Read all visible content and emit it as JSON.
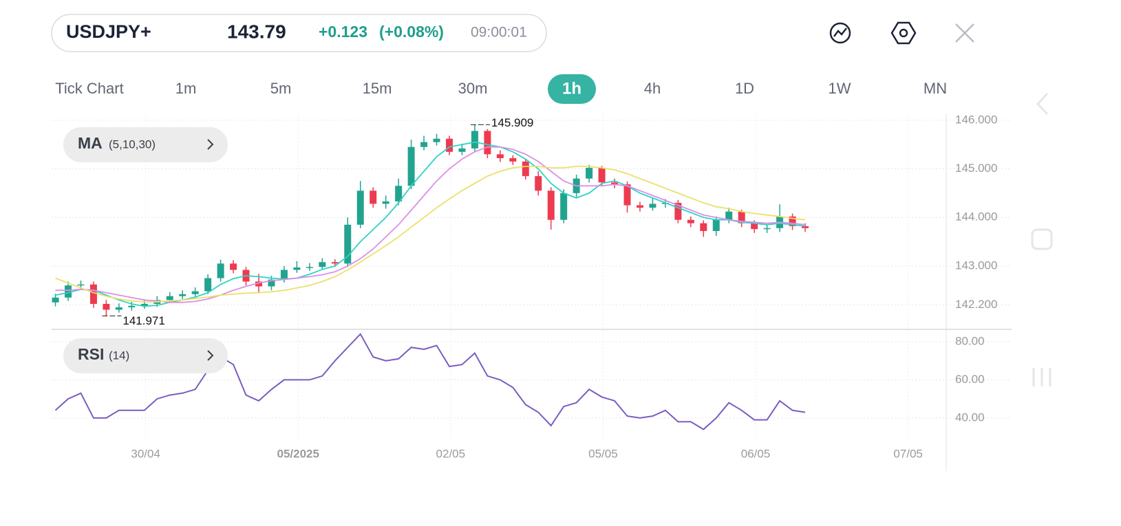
{
  "header": {
    "symbol": "USDJPY+",
    "price": "143.79",
    "change": "+0.123",
    "change_pct": "(+0.08%)",
    "time": "09:00:01"
  },
  "timeframes": [
    "Tick Chart",
    "1m",
    "5m",
    "15m",
    "30m",
    "1h",
    "4h",
    "1D",
    "1W",
    "MN"
  ],
  "selected_timeframe": "1h",
  "indicators": [
    {
      "name": "MA",
      "params": "(5,10,30)"
    },
    {
      "name": "RSI",
      "params": "(14)"
    }
  ],
  "chart_data": [
    {
      "type": "candlestick",
      "up_color": "#22a38f",
      "down_color": "#ee3a4f",
      "open": [
        142.25,
        142.35,
        142.6,
        142.62,
        142.22,
        142.1,
        142.15,
        142.18,
        142.22,
        142.3,
        142.38,
        142.42,
        142.48,
        142.75,
        143.05,
        142.92,
        142.68,
        142.58,
        142.72,
        142.92,
        142.97,
        142.98,
        143.08,
        143.05,
        143.85,
        144.55,
        144.28,
        144.33,
        144.65,
        145.45,
        145.55,
        145.62,
        145.35,
        145.42,
        145.78,
        145.3,
        145.22,
        145.15,
        144.85,
        144.55,
        143.95,
        144.5,
        144.8,
        145.02,
        144.72,
        144.68,
        144.25,
        144.2,
        144.28,
        144.3,
        143.95,
        143.88,
        143.72,
        143.95,
        144.12,
        143.88,
        143.76,
        143.78,
        144.02,
        143.82
      ],
      "high": [
        142.43,
        142.68,
        142.7,
        142.68,
        142.3,
        142.23,
        142.26,
        142.3,
        142.38,
        142.46,
        142.5,
        142.56,
        142.83,
        143.13,
        143.12,
        142.98,
        142.84,
        142.8,
        143.0,
        143.1,
        143.06,
        143.16,
        143.14,
        144.0,
        144.75,
        144.62,
        144.45,
        144.8,
        145.6,
        145.68,
        145.72,
        145.68,
        145.52,
        145.909,
        145.82,
        145.38,
        145.28,
        145.2,
        144.95,
        144.62,
        144.58,
        144.88,
        145.08,
        145.06,
        144.8,
        144.74,
        144.32,
        144.4,
        144.38,
        144.36,
        144.02,
        143.94,
        144.02,
        144.2,
        144.16,
        143.94,
        143.86,
        144.27,
        144.08,
        143.88
      ],
      "low": [
        142.17,
        142.28,
        142.52,
        142.14,
        141.971,
        142.04,
        142.08,
        142.12,
        142.16,
        142.24,
        142.32,
        142.36,
        142.42,
        142.68,
        142.85,
        142.6,
        142.45,
        142.5,
        142.66,
        142.86,
        142.9,
        142.92,
        142.98,
        142.98,
        143.78,
        144.2,
        144.18,
        144.25,
        144.58,
        145.38,
        145.48,
        145.28,
        145.28,
        145.36,
        145.22,
        145.14,
        145.08,
        144.78,
        144.45,
        143.75,
        143.88,
        144.42,
        144.72,
        144.65,
        144.6,
        144.1,
        144.12,
        144.14,
        144.2,
        143.88,
        143.8,
        143.6,
        143.62,
        143.88,
        143.8,
        143.68,
        143.68,
        143.7,
        143.74,
        143.7
      ],
      "close": [
        142.35,
        142.6,
        142.62,
        142.22,
        142.1,
        142.15,
        142.18,
        142.22,
        142.3,
        142.38,
        142.42,
        142.48,
        142.75,
        143.05,
        142.92,
        142.68,
        142.58,
        142.72,
        142.92,
        142.97,
        142.98,
        143.08,
        143.05,
        143.85,
        144.55,
        144.28,
        144.33,
        144.65,
        145.45,
        145.55,
        145.62,
        145.35,
        145.42,
        145.78,
        145.3,
        145.22,
        145.15,
        144.85,
        144.55,
        143.95,
        144.5,
        144.8,
        145.02,
        144.72,
        144.68,
        144.25,
        144.2,
        144.28,
        144.3,
        143.95,
        143.88,
        143.72,
        143.95,
        144.12,
        143.88,
        143.76,
        143.78,
        144.02,
        143.82,
        143.78
      ],
      "series": [
        {
          "color": "#2fd3c3",
          "values": [
            142.4,
            142.45,
            142.52,
            142.5,
            142.4,
            142.3,
            142.22,
            142.17,
            142.19,
            142.25,
            142.3,
            142.36,
            142.45,
            142.62,
            142.74,
            142.8,
            142.78,
            142.75,
            142.73,
            142.75,
            142.83,
            142.93,
            143.0,
            143.2,
            143.5,
            143.75,
            144.0,
            144.3,
            144.65,
            144.95,
            145.25,
            145.45,
            145.5,
            145.55,
            145.5,
            145.45,
            145.35,
            145.2,
            145.0,
            144.7,
            144.5,
            144.4,
            144.5,
            144.7,
            144.75,
            144.65,
            144.5,
            144.4,
            144.3,
            144.2,
            144.1,
            144.0,
            143.95,
            143.95,
            143.9,
            143.88,
            143.85,
            143.88,
            143.85,
            143.82
          ]
        },
        {
          "color": "#db8fe6",
          "values": [
            142.5,
            142.5,
            142.52,
            142.5,
            142.45,
            142.4,
            142.35,
            142.3,
            142.28,
            142.25,
            142.25,
            142.27,
            142.32,
            142.4,
            142.5,
            142.58,
            142.65,
            142.7,
            142.72,
            142.75,
            142.78,
            142.82,
            142.88,
            143.0,
            143.15,
            143.35,
            143.6,
            143.85,
            144.15,
            144.45,
            144.75,
            145.0,
            145.2,
            145.35,
            145.45,
            145.45,
            145.4,
            145.3,
            145.15,
            144.95,
            144.75,
            144.65,
            144.65,
            144.65,
            144.68,
            144.65,
            144.55,
            144.45,
            144.35,
            144.25,
            144.15,
            144.05,
            144.0,
            143.95,
            143.92,
            143.9,
            143.88,
            143.9,
            143.88,
            143.85
          ]
        },
        {
          "color": "#ebe06a",
          "values": [
            142.75,
            142.65,
            142.55,
            142.45,
            142.38,
            142.32,
            142.28,
            142.26,
            142.26,
            142.28,
            142.3,
            142.33,
            142.36,
            142.4,
            142.42,
            142.44,
            142.45,
            142.47,
            142.5,
            142.55,
            142.6,
            142.68,
            142.78,
            142.92,
            143.08,
            143.25,
            143.42,
            143.6,
            143.8,
            144.0,
            144.2,
            144.38,
            144.55,
            144.7,
            144.85,
            144.95,
            145.02,
            145.05,
            145.05,
            145.02,
            145.02,
            145.05,
            145.05,
            145.02,
            144.98,
            144.9,
            144.8,
            144.7,
            144.6,
            144.5,
            144.4,
            144.3,
            144.22,
            144.18,
            144.12,
            144.08,
            144.05,
            144.02,
            143.98,
            143.95
          ]
        }
      ],
      "high_label": 145.909,
      "low_label": 141.971,
      "ylim": [
        141.71,
        146.14
      ],
      "yticks": [
        {
          "value": 146,
          "label": "146.000"
        },
        {
          "value": 145,
          "label": "145.000"
        },
        {
          "value": 144,
          "label": "144.000"
        },
        {
          "value": 143,
          "label": "143.000"
        },
        {
          "value": 142.2,
          "label": "142.200"
        }
      ],
      "grid": true
    },
    {
      "type": "line",
      "color": "#7a5cc0",
      "values": [
        44,
        50,
        53,
        40,
        40,
        44,
        44,
        44,
        50,
        52,
        53,
        55,
        65,
        72,
        68,
        52,
        49,
        55,
        60,
        60,
        60,
        62,
        70,
        77,
        84,
        72,
        70,
        71,
        77,
        76,
        78,
        67,
        68,
        74,
        62,
        60,
        56,
        47,
        43,
        36,
        46,
        48,
        55,
        51,
        49,
        41,
        40,
        41,
        44,
        38,
        38,
        34,
        40,
        48,
        44,
        39,
        39,
        49,
        44,
        43
      ],
      "ylim": [
        29.5,
        86.1
      ],
      "yticks": [
        {
          "value": 80,
          "label": "80.00"
        },
        {
          "value": 60,
          "label": "60.00"
        },
        {
          "value": 40,
          "label": "40.00"
        }
      ],
      "xlim": [
        -0.3,
        70.1
      ],
      "xticks": [
        {
          "value": 7.1,
          "label": "30/04"
        },
        {
          "value": 19.1,
          "label": "05/2025",
          "bold": true
        },
        {
          "value": 31.1,
          "label": "02/05"
        },
        {
          "value": 43.1,
          "label": "05/05"
        },
        {
          "value": 55.1,
          "label": "06/05"
        },
        {
          "value": 67.1,
          "label": "07/05"
        }
      ],
      "grid": true
    }
  ]
}
